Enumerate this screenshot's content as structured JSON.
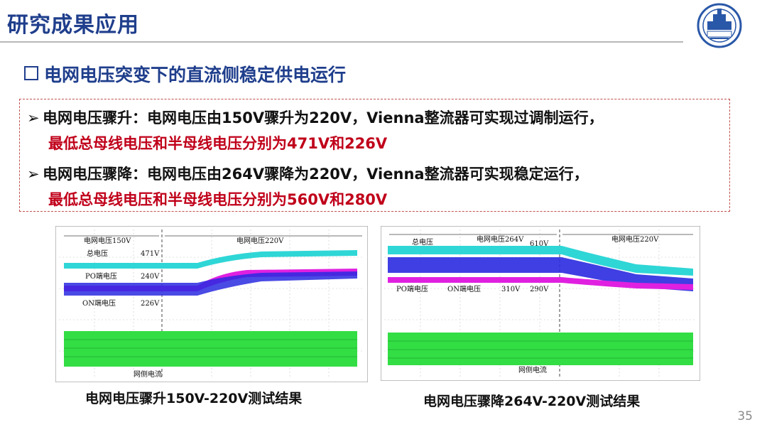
{
  "header": {
    "title": "研究成果应用"
  },
  "section": {
    "heading": "电网电压突变下的直流侧稳定供电运行"
  },
  "bullets": [
    {
      "lead": "电网电压骤升：电网电压由150V骤升为220V，Vienna整流器可实现过调制运行，",
      "red": "最低总母线电压和半母线电压分别为471V和226V"
    },
    {
      "lead": "电网电压骤降：电网电压由264V骤降为220V，Vienna整流器可实现稳定运行，",
      "red": "最低总母线电压和半母线电压分别为560V和280V"
    }
  ],
  "waveforms": {
    "left": {
      "phase1": "电网电压150V",
      "phase2": "电网电压220V",
      "l_total": "总电压",
      "v_total": "471V",
      "l_po": "PO端电压",
      "v_po": "240V",
      "l_on": "ON端电压",
      "v_on": "226V",
      "l_current": "网侧电流",
      "caption": "电网电压骤升150V-220V测试结果"
    },
    "right": {
      "phase1": "电网电压264V",
      "phase2": "电网电压220V",
      "l_total": "总电压",
      "v_total": "610V",
      "l_po": "PO端电压",
      "l_on": "ON端电压",
      "v_po": "310V",
      "v_on": "290V",
      "l_current": "网侧电流",
      "caption": "电网电压骤降264V-220V测试结果"
    }
  },
  "colors": {
    "title": "#1f3e8c",
    "red": "#c0001a",
    "cyan": "#2fd6d6",
    "blue": "#2a2ae0",
    "magenta": "#e020e0",
    "green": "#33dd44"
  },
  "page_number": "35"
}
